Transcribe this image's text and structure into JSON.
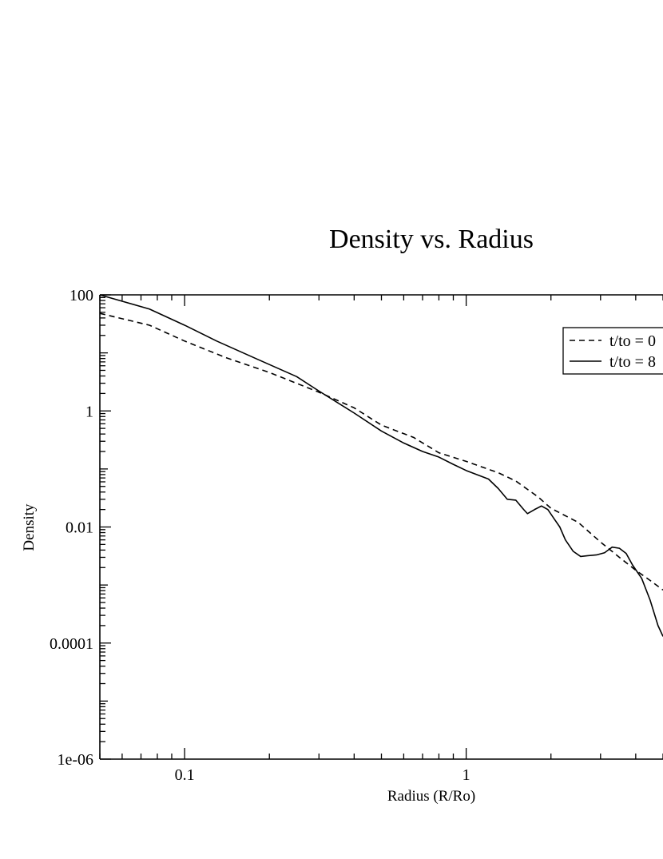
{
  "chart_data": {
    "type": "line",
    "title": "Density vs. Radius",
    "xlabel": "Radius (R/Ro)",
    "ylabel": "Density",
    "xscale": "log",
    "yscale": "log",
    "xlim": [
      0.05,
      5.0
    ],
    "ylim": [
      1e-06,
      100
    ],
    "x_ticks": [
      {
        "value": 0.1,
        "label": "0.1"
      },
      {
        "value": 1,
        "label": "1"
      }
    ],
    "y_ticks": [
      {
        "value": 1e-06,
        "label": "1e-06"
      },
      {
        "value": 0.0001,
        "label": "0.0001"
      },
      {
        "value": 0.01,
        "label": "0.01"
      },
      {
        "value": 1,
        "label": "1"
      },
      {
        "value": 100,
        "label": "100"
      }
    ],
    "grid": false,
    "legend": {
      "position": "top-right",
      "entries": [
        {
          "label": "t/to = 0",
          "style": "dashed"
        },
        {
          "label": "t/to = 8",
          "style": "solid"
        }
      ]
    },
    "series": [
      {
        "name": "t/to = 0",
        "style": "dashed",
        "color": "#000000",
        "points": [
          [
            0.05,
            48
          ],
          [
            0.075,
            30
          ],
          [
            0.1,
            16
          ],
          [
            0.14,
            8.3
          ],
          [
            0.2,
            4.6
          ],
          [
            0.3,
            2.1
          ],
          [
            0.4,
            1.13
          ],
          [
            0.5,
            0.57
          ],
          [
            0.65,
            0.35
          ],
          [
            0.8,
            0.19
          ],
          [
            1.0,
            0.135
          ],
          [
            1.3,
            0.086
          ],
          [
            1.5,
            0.062
          ],
          [
            1.8,
            0.033
          ],
          [
            2.0,
            0.021
          ],
          [
            2.5,
            0.012
          ],
          [
            3.0,
            0.0055
          ],
          [
            3.5,
            0.003
          ],
          [
            4.0,
            0.0018
          ],
          [
            4.5,
            0.0012
          ],
          [
            5.0,
            0.00082
          ]
        ]
      },
      {
        "name": "t/to = 8",
        "style": "solid",
        "color": "#000000",
        "points": [
          [
            0.05,
            100
          ],
          [
            0.075,
            57
          ],
          [
            0.1,
            30
          ],
          [
            0.13,
            16
          ],
          [
            0.18,
            7.9
          ],
          [
            0.25,
            3.9
          ],
          [
            0.3,
            2.2
          ],
          [
            0.4,
            0.92
          ],
          [
            0.5,
            0.45
          ],
          [
            0.6,
            0.28
          ],
          [
            0.7,
            0.2
          ],
          [
            0.8,
            0.16
          ],
          [
            0.9,
            0.12
          ],
          [
            1.0,
            0.094
          ],
          [
            1.2,
            0.067
          ],
          [
            1.3,
            0.046
          ],
          [
            1.4,
            0.03
          ],
          [
            1.5,
            0.029
          ],
          [
            1.6,
            0.02
          ],
          [
            1.65,
            0.017
          ],
          [
            1.75,
            0.02
          ],
          [
            1.85,
            0.023
          ],
          [
            1.95,
            0.02
          ],
          [
            2.05,
            0.014
          ],
          [
            2.15,
            0.01
          ],
          [
            2.25,
            0.006
          ],
          [
            2.4,
            0.0038
          ],
          [
            2.55,
            0.0031
          ],
          [
            2.7,
            0.0032
          ],
          [
            2.9,
            0.0033
          ],
          [
            3.1,
            0.0036
          ],
          [
            3.3,
            0.0045
          ],
          [
            3.5,
            0.0043
          ],
          [
            3.7,
            0.0035
          ],
          [
            3.9,
            0.0022
          ],
          [
            4.2,
            0.0013
          ],
          [
            4.5,
            0.00055
          ],
          [
            4.8,
            0.0002
          ],
          [
            5.0,
            0.00013
          ]
        ]
      }
    ]
  }
}
